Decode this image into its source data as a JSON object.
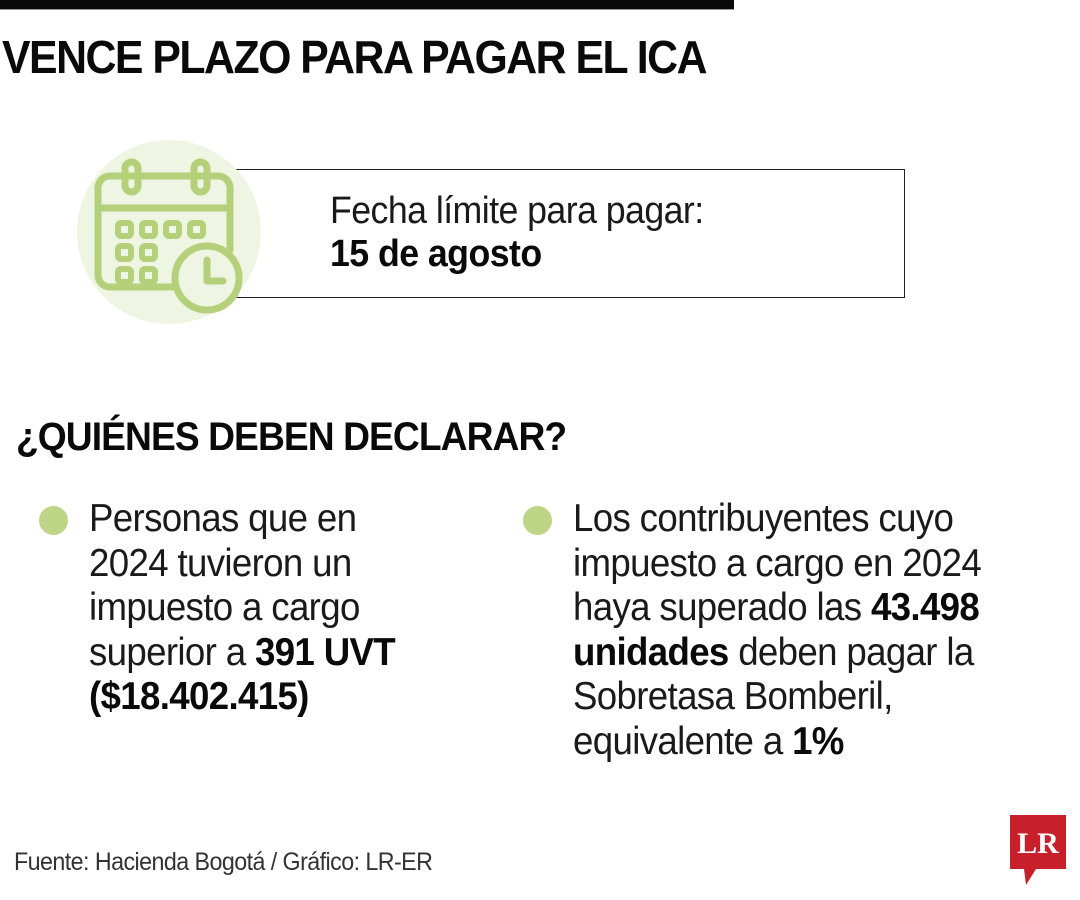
{
  "header": {
    "title": "VENCE PLAZO PARA PAGAR EL ICA"
  },
  "deadline": {
    "icon": "calendar-clock-icon",
    "label": "Fecha límite para pagar:",
    "value": "15 de agosto"
  },
  "section": {
    "heading": "¿QUIÉNES DEBEN DECLARAR?"
  },
  "bullets": [
    {
      "lines": [
        [
          {
            "t": "Personas que en",
            "b": false
          }
        ],
        [
          {
            "t": "2024 tuvieron un",
            "b": false
          }
        ],
        [
          {
            "t": "impuesto a cargo",
            "b": false
          }
        ],
        [
          {
            "t": "superior a ",
            "b": false
          },
          {
            "t": "391 UVT",
            "b": true
          }
        ],
        [
          {
            "t": "($18.402.415)",
            "b": true
          }
        ]
      ]
    },
    {
      "lines": [
        [
          {
            "t": "Los contribuyentes cuyo",
            "b": false
          }
        ],
        [
          {
            "t": "impuesto a cargo en 2024",
            "b": false
          }
        ],
        [
          {
            "t": "haya superado las ",
            "b": false
          },
          {
            "t": "43.498",
            "b": true
          }
        ],
        [
          {
            "t": "unidades",
            "b": true
          },
          {
            "t": " deben pagar la",
            "b": false
          }
        ],
        [
          {
            "t": "Sobretasa Bomberil,",
            "b": false
          }
        ],
        [
          {
            "t": "equivalente a ",
            "b": false
          },
          {
            "t": "1%",
            "b": true
          }
        ]
      ]
    }
  ],
  "footer": {
    "source": "Fuente: Hacienda Bogotá / Gráfico: LR-ER",
    "logo_text": "LR"
  },
  "colors": {
    "accent_green": "#bed486",
    "icon_green": "#b5d07a",
    "circle_bg": "#eff5e3",
    "logo_red": "#c8202a"
  }
}
